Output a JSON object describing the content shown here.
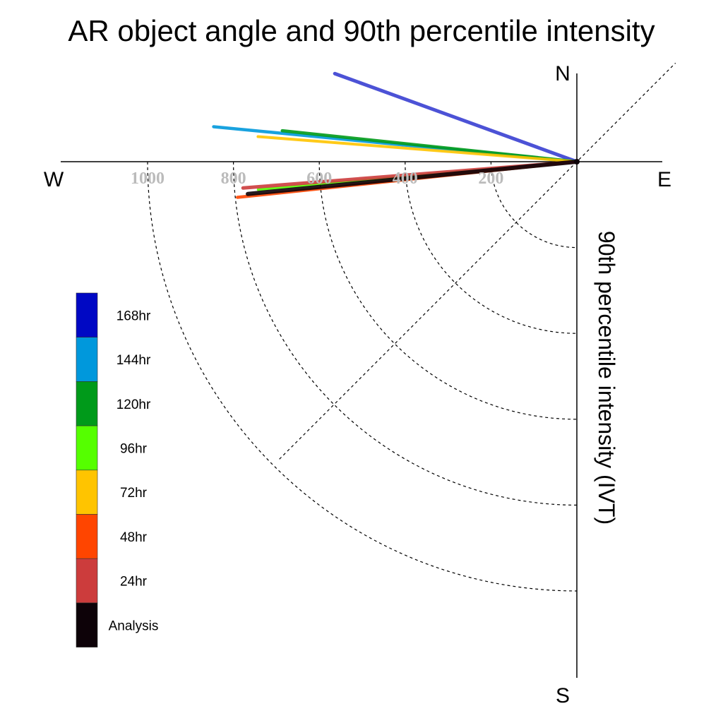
{
  "chart_data": {
    "type": "line",
    "title": "AR object angle and 90th percentile intensity",
    "ylabel": "90th percentile intensity (IVT)",
    "compass": {
      "north": "N",
      "south": "S",
      "east": "E",
      "west": "W"
    },
    "radial_ticks": [
      "200",
      "400",
      "600",
      "800",
      "1000"
    ],
    "radial_tick_values": [
      200,
      400,
      600,
      800,
      1000
    ],
    "rlim": [
      0,
      1000
    ],
    "grid": true,
    "legend_position": "left",
    "series": [
      {
        "name": "Analysis",
        "angle_deg": 174.4,
        "intensity": 770,
        "color": "#0d0208"
      },
      {
        "name": "24hr",
        "angle_deg": 175.5,
        "intensity": 780,
        "color": "#cc3c3c"
      },
      {
        "name": "48hr",
        "angle_deg": 174.0,
        "intensity": 795,
        "color": "#ff4500"
      },
      {
        "name": "72hr",
        "angle_deg": 184.5,
        "intensity": 745,
        "color": "#ffc400"
      },
      {
        "name": "96hr",
        "angle_deg": 175.0,
        "intensity": 745,
        "color": "#55ff00"
      },
      {
        "name": "120hr",
        "angle_deg": 186.0,
        "intensity": 690,
        "color": "#009a1a"
      },
      {
        "name": "144hr",
        "angle_deg": 185.5,
        "intensity": 850,
        "color": "#0098dc"
      },
      {
        "name": "168hr",
        "angle_deg": 200.0,
        "intensity": 600,
        "color": "#0008c4"
      }
    ],
    "legend": [
      "168hr",
      "144hr",
      "120hr",
      "96hr",
      "72hr",
      "48hr",
      "24hr",
      "Analysis"
    ]
  }
}
